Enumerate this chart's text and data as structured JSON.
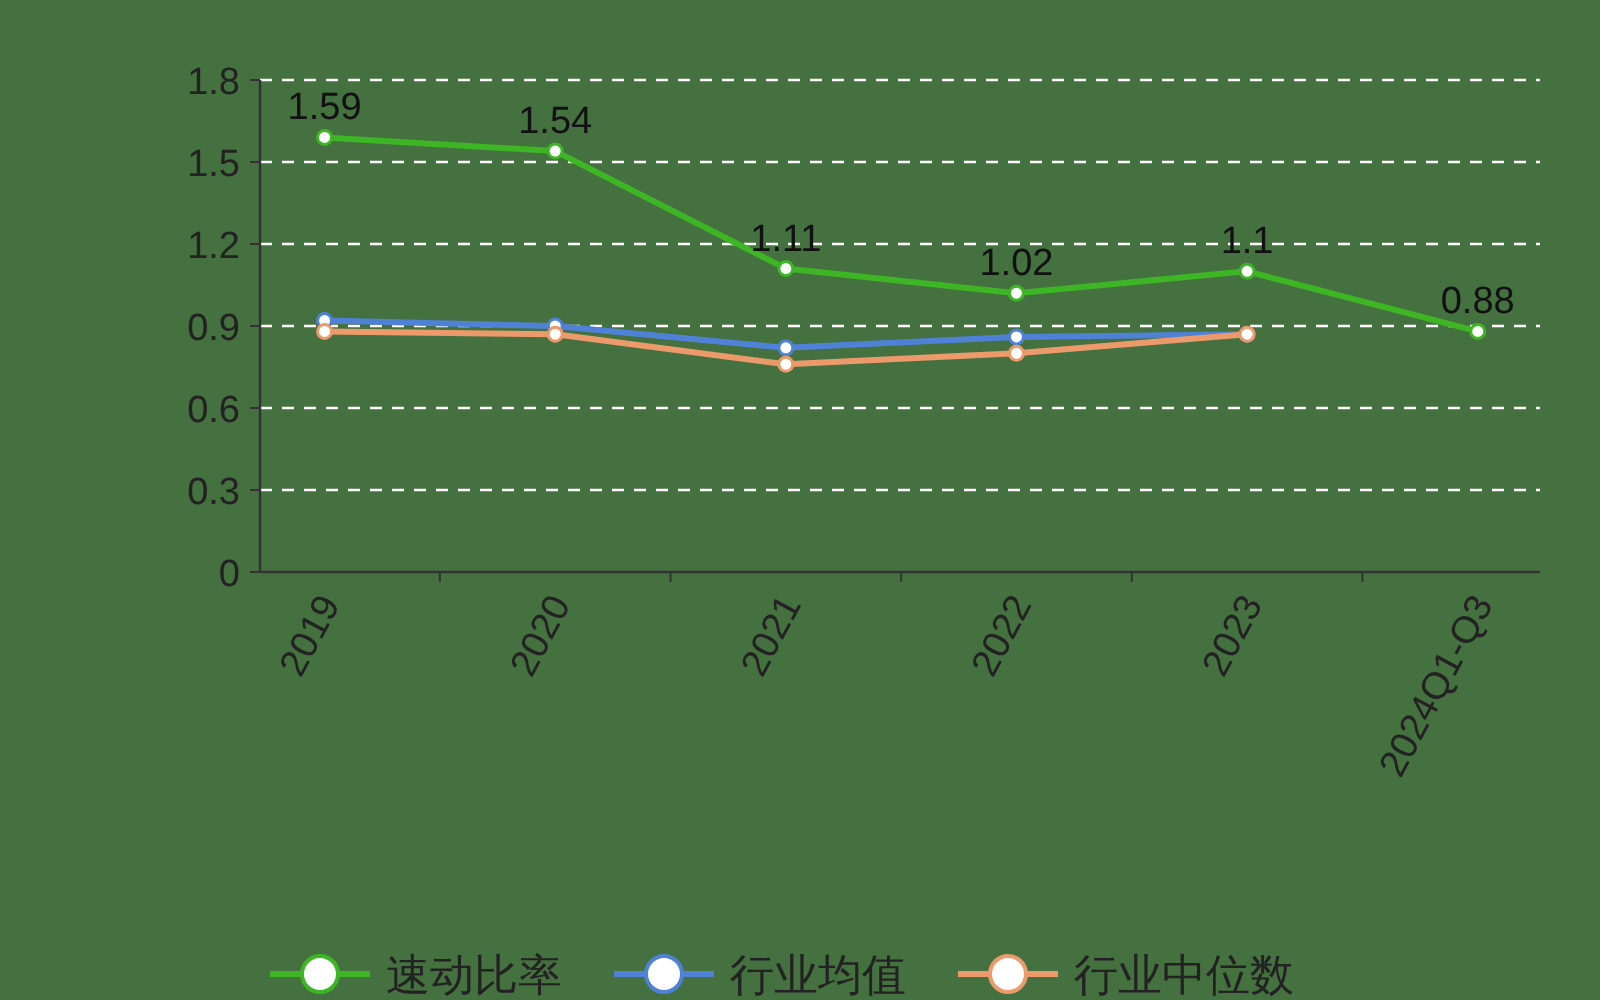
{
  "chart_data": {
    "type": "line",
    "categories": [
      "2019",
      "2020",
      "2021",
      "2022",
      "2023",
      "2024Q1-Q3"
    ],
    "series": [
      {
        "name": "速动比率",
        "color": "#3db524",
        "values": [
          1.59,
          1.54,
          1.11,
          1.02,
          1.1,
          0.88
        ],
        "value_labels": [
          "1.59",
          "1.54",
          "1.11",
          "1.02",
          "1.1",
          "0.88"
        ]
      },
      {
        "name": "行业均值",
        "color": "#4f82d6",
        "values": [
          0.92,
          0.9,
          0.82,
          0.86,
          0.87,
          null
        ]
      },
      {
        "name": "行业中位数",
        "color": "#ec9a6c",
        "values": [
          0.88,
          0.87,
          0.76,
          0.8,
          0.87,
          null
        ]
      }
    ],
    "ylim": [
      0,
      1.8
    ],
    "yticks": [
      0,
      0.3,
      0.6,
      0.9,
      1.2,
      1.5,
      1.8
    ],
    "grid": "y",
    "legend": "bottom",
    "marker": "circle"
  }
}
